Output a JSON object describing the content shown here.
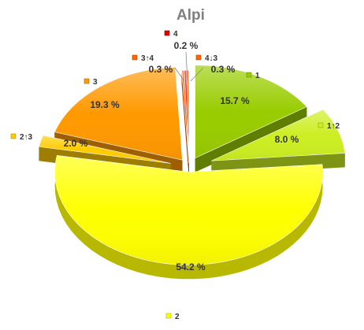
{
  "chart_data": {
    "type": "pie",
    "title": "Alpi",
    "legend_placement": "next-to-slices",
    "slices": [
      {
        "label": "1",
        "value": 15.7,
        "value_label": "15.7 %",
        "color": "#99cc00"
      },
      {
        "label": "1↑2",
        "value": 8.0,
        "value_label": "8.0 %",
        "color": "#ccee22"
      },
      {
        "label": "2",
        "value": 54.2,
        "value_label": "54.2 %",
        "color": "#ffff00"
      },
      {
        "label": "2↑3",
        "value": 2.0,
        "value_label": "2.0 %",
        "color": "#ffcc00"
      },
      {
        "label": "3",
        "value": 19.3,
        "value_label": "19.3 %",
        "color": "#ff9900"
      },
      {
        "label": "3↑4",
        "value": 0.3,
        "value_label": "0.3 %",
        "color": "#ff6600"
      },
      {
        "label": "4",
        "value": 0.2,
        "value_label": "0.2 %",
        "color": "#dd0000"
      },
      {
        "label": "4↓3",
        "value": 0.3,
        "value_label": "0.3 %",
        "color": "#ff6600"
      }
    ]
  }
}
